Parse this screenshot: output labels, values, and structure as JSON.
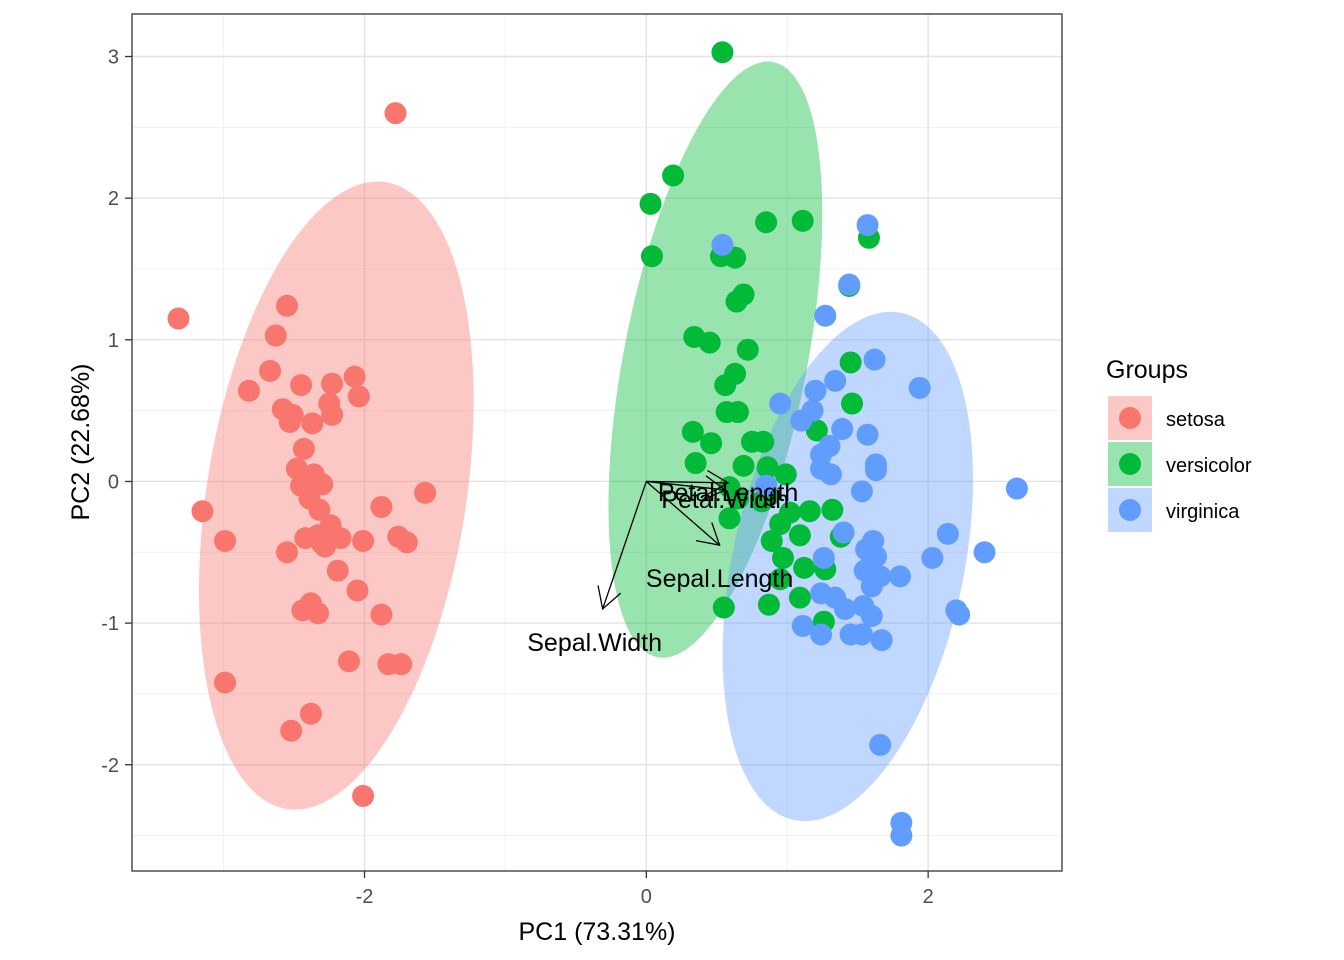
{
  "chart_data": {
    "type": "scatter",
    "title": "",
    "xlabel": "PC1 (73.31%)",
    "ylabel": "PC2 (22.68%)",
    "xlim": [
      -3.65,
      2.95
    ],
    "ylim": [
      -2.75,
      3.3
    ],
    "x_ticks": [
      -2,
      0,
      2
    ],
    "x_tick_labels": [
      "-2",
      "0",
      "2"
    ],
    "y_ticks": [
      -2,
      -1,
      0,
      1,
      2,
      3
    ],
    "y_tick_labels": [
      "-2",
      "-1",
      "0",
      "1",
      "2",
      "3"
    ],
    "grid": true,
    "legend": {
      "title": "Groups",
      "position": "right",
      "entries": [
        "setosa",
        "versicolor",
        "virginica"
      ]
    },
    "colors": {
      "setosa": "#F8766D",
      "versicolor": "#00BA38",
      "virginica": "#619CFF"
    },
    "ellipses": [
      {
        "group": "setosa",
        "cx": -2.2,
        "cy": -0.1,
        "rx": 0.92,
        "ry": 2.24,
        "angle_deg": 9
      },
      {
        "group": "versicolor",
        "cx": 0.49,
        "cy": 0.86,
        "rx": 0.65,
        "ry": 2.14,
        "angle_deg": 11
      },
      {
        "group": "virginica",
        "cx": 1.43,
        "cy": -0.6,
        "rx": 0.82,
        "ry": 1.83,
        "angle_deg": 12
      }
    ],
    "series": [
      {
        "name": "setosa",
        "points": [
          [
            -1.78,
            2.6
          ],
          [
            -2.55,
            1.24
          ],
          [
            -2.63,
            1.03
          ],
          [
            -2.67,
            0.78
          ],
          [
            -2.82,
            0.64
          ],
          [
            -2.45,
            0.68
          ],
          [
            -2.23,
            0.69
          ],
          [
            -2.07,
            0.74
          ],
          [
            -2.58,
            0.51
          ],
          [
            -2.51,
            0.47
          ],
          [
            -2.53,
            0.42
          ],
          [
            -2.37,
            0.41
          ],
          [
            -2.25,
            0.55
          ],
          [
            -2.23,
            0.47
          ],
          [
            -2.04,
            0.6
          ],
          [
            -2.43,
            0.23
          ],
          [
            -2.48,
            0.09
          ],
          [
            -2.36,
            0.05
          ],
          [
            -2.45,
            -0.03
          ],
          [
            -2.3,
            -0.02
          ],
          [
            -2.39,
            -0.12
          ],
          [
            -2.32,
            -0.2
          ],
          [
            -2.24,
            -0.31
          ],
          [
            -2.33,
            -0.38
          ],
          [
            -2.17,
            -0.4
          ],
          [
            -2.42,
            -0.4
          ],
          [
            -2.28,
            -0.46
          ],
          [
            -2.55,
            -0.5
          ],
          [
            -2.01,
            -0.42
          ],
          [
            -1.88,
            -0.18
          ],
          [
            -1.76,
            -0.39
          ],
          [
            -1.7,
            -0.43
          ],
          [
            -1.57,
            -0.08
          ],
          [
            -3.32,
            1.15
          ],
          [
            -3.15,
            -0.21
          ],
          [
            -2.99,
            -0.42
          ],
          [
            -2.99,
            -1.42
          ],
          [
            -2.44,
            -0.91
          ],
          [
            -2.38,
            -0.86
          ],
          [
            -2.33,
            -0.93
          ],
          [
            -2.19,
            -0.63
          ],
          [
            -2.05,
            -0.77
          ],
          [
            -1.88,
            -0.94
          ],
          [
            -2.11,
            -1.27
          ],
          [
            -1.83,
            -1.29
          ],
          [
            -1.74,
            -1.29
          ],
          [
            -2.52,
            -1.76
          ],
          [
            -2.38,
            -1.64
          ],
          [
            -2.01,
            -2.22
          ],
          [
            -2.3,
            -0.44
          ]
        ]
      },
      {
        "name": "versicolor",
        "points": [
          [
            0.54,
            3.03
          ],
          [
            0.19,
            2.16
          ],
          [
            0.03,
            1.96
          ],
          [
            0.04,
            1.59
          ],
          [
            0.53,
            1.59
          ],
          [
            0.63,
            1.58
          ],
          [
            0.64,
            1.27
          ],
          [
            0.69,
            1.32
          ],
          [
            0.85,
            1.83
          ],
          [
            1.11,
            1.84
          ],
          [
            1.58,
            1.72
          ],
          [
            0.34,
            1.02
          ],
          [
            0.45,
            0.98
          ],
          [
            0.72,
            0.93
          ],
          [
            0.56,
            0.68
          ],
          [
            0.63,
            0.76
          ],
          [
            0.57,
            0.49
          ],
          [
            0.65,
            0.49
          ],
          [
            0.33,
            0.35
          ],
          [
            0.46,
            0.27
          ],
          [
            0.35,
            0.13
          ],
          [
            0.69,
            0.11
          ],
          [
            0.83,
            0.28
          ],
          [
            0.86,
            0.1
          ],
          [
            0.99,
            0.05
          ],
          [
            0.87,
            -0.1
          ],
          [
            0.59,
            -0.26
          ],
          [
            0.82,
            -0.14
          ],
          [
            0.75,
            0.28
          ],
          [
            1.02,
            -0.22
          ],
          [
            1.16,
            -0.21
          ],
          [
            0.95,
            -0.3
          ],
          [
            0.89,
            -0.42
          ],
          [
            1.09,
            -0.38
          ],
          [
            1.32,
            -0.2
          ],
          [
            0.97,
            -0.54
          ],
          [
            1.12,
            -0.61
          ],
          [
            1.27,
            -0.62
          ],
          [
            0.95,
            -0.69
          ],
          [
            0.87,
            -0.87
          ],
          [
            1.09,
            -0.82
          ],
          [
            1.26,
            -0.99
          ],
          [
            1.38,
            -0.39
          ],
          [
            1.46,
            0.55
          ],
          [
            1.45,
            0.84
          ],
          [
            1.44,
            1.38
          ],
          [
            0.59,
            -0.04
          ],
          [
            0.65,
            -0.12
          ],
          [
            0.55,
            -0.89
          ],
          [
            1.21,
            0.36
          ]
        ]
      },
      {
        "name": "virginica",
        "points": [
          [
            1.57,
            1.81
          ],
          [
            0.54,
            1.67
          ],
          [
            1.44,
            1.39
          ],
          [
            1.27,
            1.17
          ],
          [
            1.62,
            0.86
          ],
          [
            1.94,
            0.66
          ],
          [
            1.34,
            0.71
          ],
          [
            1.2,
            0.64
          ],
          [
            0.95,
            0.55
          ],
          [
            1.18,
            0.5
          ],
          [
            1.39,
            0.37
          ],
          [
            1.57,
            0.33
          ],
          [
            1.24,
            0.19
          ],
          [
            1.24,
            0.09
          ],
          [
            1.63,
            0.08
          ],
          [
            1.1,
            0.43
          ],
          [
            1.3,
            0.25
          ],
          [
            1.63,
            0.12
          ],
          [
            2.63,
            -0.05
          ],
          [
            1.53,
            -0.07
          ],
          [
            1.4,
            -0.36
          ],
          [
            1.56,
            -0.48
          ],
          [
            1.63,
            -0.53
          ],
          [
            1.6,
            -0.56
          ],
          [
            1.26,
            -0.54
          ],
          [
            1.55,
            -0.63
          ],
          [
            1.66,
            -0.67
          ],
          [
            1.8,
            -0.67
          ],
          [
            1.6,
            -0.74
          ],
          [
            1.54,
            -0.88
          ],
          [
            1.41,
            -0.9
          ],
          [
            1.24,
            -0.79
          ],
          [
            1.34,
            -0.82
          ],
          [
            1.6,
            -0.95
          ],
          [
            1.11,
            -1.02
          ],
          [
            1.24,
            -1.08
          ],
          [
            1.45,
            -1.08
          ],
          [
            1.53,
            -1.08
          ],
          [
            1.67,
            -1.12
          ],
          [
            2.03,
            -0.54
          ],
          [
            2.14,
            -0.37
          ],
          [
            2.4,
            -0.5
          ],
          [
            2.2,
            -0.91
          ],
          [
            2.22,
            -0.94
          ],
          [
            1.66,
            -1.86
          ],
          [
            1.81,
            -2.41
          ],
          [
            1.81,
            -2.5
          ],
          [
            1.61,
            -0.42
          ],
          [
            0.85,
            -0.03
          ],
          [
            1.31,
            0.05
          ]
        ]
      }
    ],
    "arrows": [
      {
        "label": "Sepal.Length",
        "x": 0.52,
        "y": -0.45
      },
      {
        "label": "Sepal.Width",
        "x": -0.31,
        "y": -0.9
      },
      {
        "label": "Petal.Length",
        "x": 0.58,
        "y": -0.01
      },
      {
        "label": "Petal.Width",
        "x": 0.56,
        "y": -0.06
      }
    ]
  }
}
